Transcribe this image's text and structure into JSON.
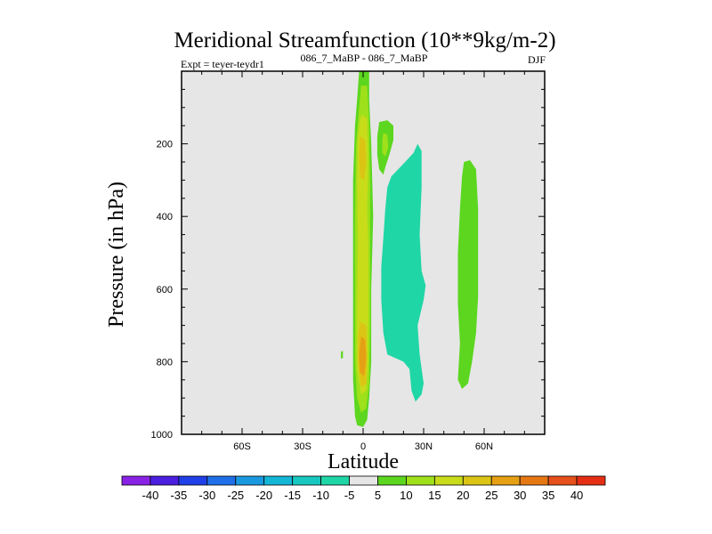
{
  "chart_data": {
    "type": "filled-contour",
    "title": "Meridional Streamfunction (10**9kg/m-2)",
    "subtitle_left": "Expt = teyer-teydr1",
    "subtitle_center": "086_7_MaBP - 086_7_MaBP",
    "subtitle_right": "DJF",
    "xlabel": "Latitude",
    "ylabel": "Pressure (in hPa)",
    "xlim": [
      -90,
      90
    ],
    "ylim": [
      1000,
      0
    ],
    "x_ticks": [
      {
        "value": -60,
        "label": "60S"
      },
      {
        "value": -30,
        "label": "30S"
      },
      {
        "value": 0,
        "label": "0"
      },
      {
        "value": 30,
        "label": "30N"
      },
      {
        "value": 60,
        "label": "60N"
      }
    ],
    "y_ticks": [
      {
        "value": 200,
        "label": "200"
      },
      {
        "value": 400,
        "label": "400"
      },
      {
        "value": 600,
        "label": "600"
      },
      {
        "value": 800,
        "label": "800"
      },
      {
        "value": 1000,
        "label": "1000"
      }
    ],
    "background_color": "#e6e6e6",
    "colorbar": {
      "levels": [
        "-40",
        "-35",
        "-30",
        "-25",
        "-20",
        "-15",
        "-10",
        "-5",
        "5",
        "10",
        "15",
        "20",
        "25",
        "30",
        "35",
        "40"
      ],
      "colors": [
        "#8a22e6",
        "#4a1fe0",
        "#1f3fe8",
        "#1f6fe8",
        "#1a99e0",
        "#14b6d6",
        "#18c8c0",
        "#1fd6a6",
        "#e6e6e6",
        "#5cd61f",
        "#9ee01a",
        "#c8dc1a",
        "#dcc414",
        "#e6a014",
        "#e67814",
        "#e6501a",
        "#e62e14"
      ]
    },
    "regions": [
      {
        "name": "equatorial-band-positive",
        "value": 10,
        "color": "#5cd61f",
        "points": [
          [
            -2,
            0
          ],
          [
            3,
            0
          ],
          [
            3,
            80
          ],
          [
            4,
            200
          ],
          [
            5,
            400
          ],
          [
            4,
            600
          ],
          [
            4,
            800
          ],
          [
            3,
            900
          ],
          [
            2,
            960
          ],
          [
            0,
            980
          ],
          [
            -3,
            975
          ],
          [
            -4,
            950
          ],
          [
            -5,
            850
          ],
          [
            -5,
            700
          ],
          [
            -5,
            500
          ],
          [
            -5,
            300
          ],
          [
            -4,
            150
          ],
          [
            -3,
            80
          ]
        ]
      },
      {
        "name": "equatorial-band-15",
        "value": 15,
        "color": "#9ee01a",
        "points": [
          [
            -1,
            40
          ],
          [
            2,
            40
          ],
          [
            3,
            150
          ],
          [
            3.5,
            300
          ],
          [
            3.5,
            500
          ],
          [
            3.5,
            700
          ],
          [
            3,
            860
          ],
          [
            1.5,
            930
          ],
          [
            -1,
            940
          ],
          [
            -3,
            900
          ],
          [
            -4,
            800
          ],
          [
            -4,
            600
          ],
          [
            -4,
            400
          ],
          [
            -3.5,
            200
          ],
          [
            -2,
            100
          ]
        ]
      },
      {
        "name": "equatorial-band-20",
        "value": 20,
        "color": "#c8dc1a",
        "points": [
          [
            -1,
            120
          ],
          [
            2,
            130
          ],
          [
            2.5,
            260
          ],
          [
            2,
            380
          ],
          [
            2.5,
            480
          ],
          [
            2.5,
            640
          ],
          [
            2.5,
            800
          ],
          [
            1.5,
            880
          ],
          [
            -1,
            890
          ],
          [
            -3,
            820
          ],
          [
            -3,
            650
          ],
          [
            -2.5,
            470
          ],
          [
            -3,
            300
          ],
          [
            -2.5,
            180
          ]
        ]
      },
      {
        "name": "equatorial-core-upper",
        "value": 25,
        "color": "#dcc414",
        "points": [
          [
            -1.5,
            180
          ],
          [
            1,
            190
          ],
          [
            1.5,
            250
          ],
          [
            0.5,
            300
          ],
          [
            -1.5,
            290
          ],
          [
            -2,
            230
          ]
        ]
      },
      {
        "name": "equatorial-core-lower",
        "value": 25,
        "color": "#dcc414",
        "points": [
          [
            -1.5,
            690
          ],
          [
            1.5,
            700
          ],
          [
            2,
            780
          ],
          [
            1.5,
            860
          ],
          [
            -1,
            870
          ],
          [
            -2.5,
            800
          ],
          [
            -2.5,
            740
          ]
        ]
      },
      {
        "name": "equatorial-core-max",
        "value": 30,
        "color": "#e6a014",
        "points": [
          [
            -1,
            730
          ],
          [
            1,
            740
          ],
          [
            1.5,
            790
          ],
          [
            0.5,
            840
          ],
          [
            -1.5,
            830
          ],
          [
            -2,
            780
          ]
        ]
      },
      {
        "name": "nh-upper-cell",
        "value": 10,
        "color": "#5cd61f",
        "points": [
          [
            8,
            140
          ],
          [
            12,
            135
          ],
          [
            15,
            150
          ],
          [
            15,
            190
          ],
          [
            13,
            230
          ],
          [
            11,
            265
          ],
          [
            10,
            285
          ],
          [
            8,
            270
          ],
          [
            7,
            230
          ],
          [
            7,
            180
          ]
        ]
      },
      {
        "name": "nh-upper-cell-core",
        "value": 15,
        "color": "#9ee01a",
        "points": [
          [
            10,
            170
          ],
          [
            12,
            175
          ],
          [
            12.5,
            210
          ],
          [
            11,
            235
          ],
          [
            9.5,
            225
          ],
          [
            9.5,
            190
          ]
        ]
      },
      {
        "name": "nh-negative-cell",
        "value": -5,
        "color": "#1fd6a6",
        "points": [
          [
            14,
            290
          ],
          [
            20,
            255
          ],
          [
            25,
            225
          ],
          [
            27,
            200
          ],
          [
            29,
            220
          ],
          [
            29,
            320
          ],
          [
            28,
            450
          ],
          [
            29,
            550
          ],
          [
            31,
            590
          ],
          [
            30,
            630
          ],
          [
            27,
            700
          ],
          [
            28,
            780
          ],
          [
            30,
            860
          ],
          [
            29,
            890
          ],
          [
            26,
            910
          ],
          [
            24,
            880
          ],
          [
            23,
            820
          ],
          [
            20,
            800
          ],
          [
            12,
            780
          ],
          [
            10,
            720
          ],
          [
            9,
            630
          ],
          [
            9,
            540
          ],
          [
            10,
            460
          ],
          [
            11,
            380
          ],
          [
            12,
            320
          ]
        ]
      },
      {
        "name": "nh-positive-cell",
        "value": 10,
        "color": "#5cd61f",
        "points": [
          [
            50,
            250
          ],
          [
            53,
            245
          ],
          [
            56,
            270
          ],
          [
            57,
            380
          ],
          [
            57,
            500
          ],
          [
            57,
            620
          ],
          [
            56,
            720
          ],
          [
            54,
            800
          ],
          [
            52,
            860
          ],
          [
            49,
            875
          ],
          [
            47,
            850
          ],
          [
            48,
            750
          ],
          [
            47,
            640
          ],
          [
            47,
            500
          ],
          [
            48,
            380
          ],
          [
            49,
            290
          ]
        ]
      },
      {
        "name": "small-sh-blob",
        "value": 10,
        "color": "#5cd61f",
        "points": [
          [
            -11,
            772
          ],
          [
            -10,
            770
          ],
          [
            -10,
            790
          ],
          [
            -11,
            792
          ]
        ]
      }
    ]
  }
}
